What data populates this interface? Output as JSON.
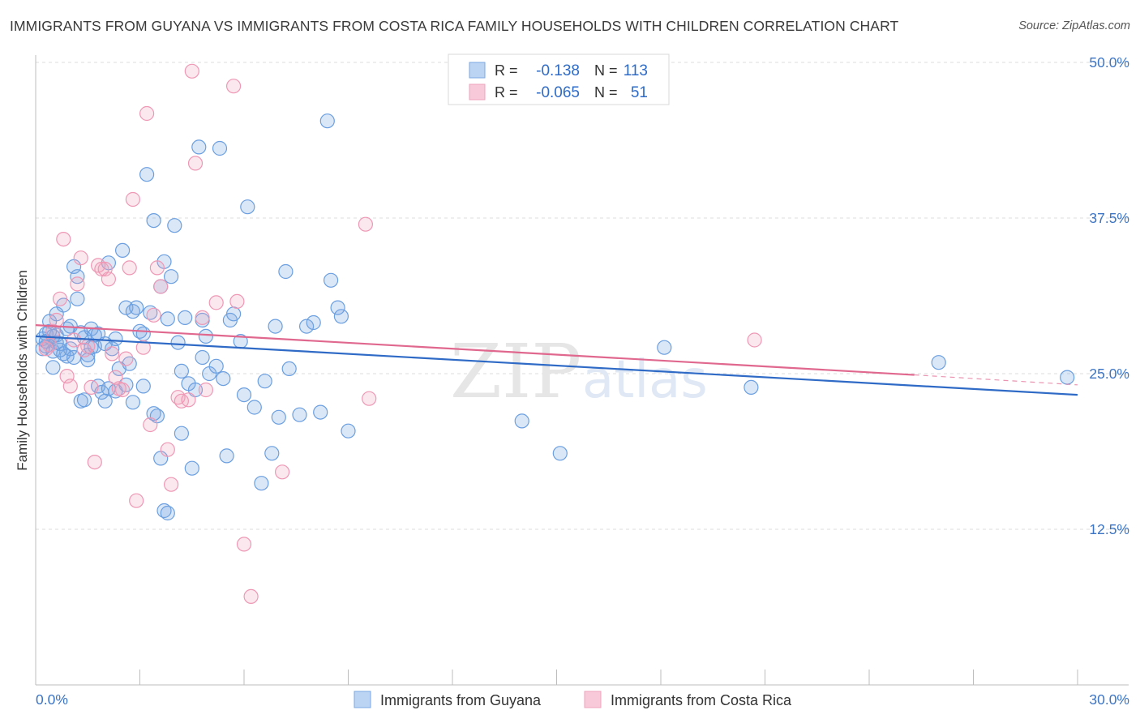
{
  "title": "IMMIGRANTS FROM GUYANA VS IMMIGRANTS FROM COSTA RICA FAMILY HOUSEHOLDS WITH CHILDREN CORRELATION CHART",
  "source": "Source: ZipAtlas.com",
  "watermark": {
    "zip": "ZIP",
    "atlas": "atlas"
  },
  "legend": {
    "r_label": "R =",
    "n_label": "N =",
    "series1": {
      "r": "-0.138",
      "n": "113"
    },
    "series2": {
      "r": "-0.065",
      "n": "51"
    }
  },
  "chart_data": {
    "type": "scatter",
    "title": "IMMIGRANTS FROM GUYANA VS IMMIGRANTS FROM COSTA RICA FAMILY HOUSEHOLDS WITH CHILDREN CORRELATION CHART",
    "xlabel": "",
    "ylabel": "Family Households with Children",
    "xlim": [
      0,
      30
    ],
    "ylim": [
      0,
      50
    ],
    "x_tick_labels": [
      "0.0%",
      "30.0%"
    ],
    "y_ticks": [
      12.5,
      25.0,
      37.5,
      50.0
    ],
    "y_tick_labels": [
      "12.5%",
      "25.0%",
      "37.5%",
      "50.0%"
    ],
    "grid": true,
    "legend_position": "top-center",
    "series": [
      {
        "name": "Immigrants from Guyana",
        "color": "#7ba9e3",
        "line_color": "#2f6bc6",
        "trend": {
          "x0": 0,
          "y0": 28.0,
          "x1": 30,
          "y1": 23.3
        },
        "points": [
          [
            0.2,
            27.8
          ],
          [
            0.3,
            28.2
          ],
          [
            0.3,
            27.2
          ],
          [
            0.4,
            29.2
          ],
          [
            0.5,
            26.8
          ],
          [
            0.6,
            28.1
          ],
          [
            0.7,
            27.4
          ],
          [
            0.8,
            30.5
          ],
          [
            0.9,
            26.4
          ],
          [
            1.0,
            28.8
          ],
          [
            1.1,
            33.6
          ],
          [
            1.2,
            32.8
          ],
          [
            1.3,
            28.3
          ],
          [
            1.4,
            27.9
          ],
          [
            1.5,
            26.1
          ],
          [
            1.6,
            28.6
          ],
          [
            1.7,
            27.2
          ],
          [
            1.8,
            24.0
          ],
          [
            1.9,
            23.5
          ],
          [
            2.0,
            22.8
          ],
          [
            2.1,
            23.8
          ],
          [
            2.2,
            27.0
          ],
          [
            2.3,
            27.8
          ],
          [
            2.4,
            25.4
          ],
          [
            2.5,
            34.9
          ],
          [
            2.6,
            30.3
          ],
          [
            2.7,
            25.8
          ],
          [
            2.8,
            22.7
          ],
          [
            2.9,
            30.3
          ],
          [
            3.0,
            28.4
          ],
          [
            3.1,
            28.2
          ],
          [
            3.2,
            41.0
          ],
          [
            3.3,
            29.9
          ],
          [
            3.4,
            37.3
          ],
          [
            3.5,
            21.6
          ],
          [
            3.6,
            32.0
          ],
          [
            3.7,
            34.0
          ],
          [
            3.8,
            29.4
          ],
          [
            3.9,
            32.8
          ],
          [
            4.0,
            36.9
          ],
          [
            4.1,
            27.5
          ],
          [
            4.2,
            25.2
          ],
          [
            4.3,
            29.5
          ],
          [
            4.4,
            24.2
          ],
          [
            4.5,
            17.4
          ],
          [
            4.6,
            23.7
          ],
          [
            4.7,
            43.2
          ],
          [
            4.8,
            26.3
          ],
          [
            4.9,
            28.0
          ],
          [
            5.0,
            25.0
          ],
          [
            5.2,
            25.6
          ],
          [
            5.3,
            43.1
          ],
          [
            5.5,
            18.4
          ],
          [
            5.6,
            29.3
          ],
          [
            5.7,
            29.8
          ],
          [
            5.9,
            27.6
          ],
          [
            6.0,
            23.3
          ],
          [
            6.1,
            38.4
          ],
          [
            6.3,
            22.3
          ],
          [
            6.5,
            16.2
          ],
          [
            6.6,
            24.4
          ],
          [
            6.8,
            18.6
          ],
          [
            7.0,
            21.5
          ],
          [
            7.2,
            33.2
          ],
          [
            7.3,
            25.4
          ],
          [
            7.6,
            21.7
          ],
          [
            7.8,
            28.8
          ],
          [
            8.0,
            29.1
          ],
          [
            8.2,
            21.9
          ],
          [
            8.4,
            45.3
          ],
          [
            8.5,
            32.5
          ],
          [
            8.7,
            30.3
          ],
          [
            8.8,
            29.6
          ],
          [
            9.0,
            20.4
          ],
          [
            3.6,
            18.2
          ],
          [
            3.7,
            14.0
          ],
          [
            3.8,
            13.8
          ],
          [
            4.2,
            20.2
          ],
          [
            2.3,
            23.6
          ],
          [
            1.5,
            26.5
          ],
          [
            0.5,
            25.5
          ],
          [
            0.6,
            29.8
          ],
          [
            1.0,
            27.0
          ],
          [
            1.3,
            22.8
          ],
          [
            0.8,
            26.6
          ],
          [
            0.2,
            27.0
          ],
          [
            0.4,
            28.4
          ],
          [
            1.7,
            28.1
          ],
          [
            1.8,
            28.2
          ],
          [
            2.0,
            27.4
          ],
          [
            0.7,
            26.9
          ],
          [
            0.9,
            28.6
          ],
          [
            1.4,
            22.9
          ],
          [
            2.6,
            24.1
          ],
          [
            3.1,
            24.0
          ],
          [
            4.8,
            29.3
          ],
          [
            5.4,
            24.6
          ],
          [
            6.9,
            28.8
          ],
          [
            0.3,
            27.6
          ],
          [
            0.6,
            27.5
          ],
          [
            1.2,
            31.0
          ],
          [
            2.1,
            33.9
          ],
          [
            2.8,
            30.0
          ],
          [
            3.4,
            21.8
          ],
          [
            14.0,
            21.2
          ],
          [
            15.1,
            18.6
          ],
          [
            18.1,
            27.1
          ],
          [
            20.6,
            23.9
          ],
          [
            26.0,
            25.9
          ],
          [
            29.7,
            24.7
          ],
          [
            0.5,
            28.0
          ],
          [
            1.1,
            26.3
          ],
          [
            1.6,
            27.1
          ]
        ]
      },
      {
        "name": "Immigrants from Costa Rica",
        "color": "#f1a3bd",
        "line_color": "#e0688f",
        "trend": {
          "x0": 0,
          "y0": 28.9,
          "x1": 25.3,
          "y1": 24.9
        },
        "trend_dashed_to": {
          "x": 30,
          "y": 24.1
        },
        "points": [
          [
            0.3,
            27.0
          ],
          [
            0.4,
            27.3
          ],
          [
            0.5,
            28.4
          ],
          [
            0.6,
            29.3
          ],
          [
            0.7,
            31.0
          ],
          [
            0.8,
            35.8
          ],
          [
            1.0,
            24.0
          ],
          [
            1.1,
            27.7
          ],
          [
            1.2,
            32.2
          ],
          [
            1.3,
            34.3
          ],
          [
            1.5,
            27.2
          ],
          [
            1.6,
            23.9
          ],
          [
            1.7,
            17.9
          ],
          [
            1.8,
            33.7
          ],
          [
            1.9,
            33.4
          ],
          [
            2.0,
            33.4
          ],
          [
            2.1,
            32.6
          ],
          [
            2.2,
            26.6
          ],
          [
            2.3,
            24.7
          ],
          [
            2.5,
            23.7
          ],
          [
            2.6,
            26.2
          ],
          [
            2.7,
            33.5
          ],
          [
            2.8,
            39.0
          ],
          [
            2.9,
            14.8
          ],
          [
            3.1,
            27.1
          ],
          [
            3.2,
            45.9
          ],
          [
            3.3,
            20.9
          ],
          [
            3.4,
            29.7
          ],
          [
            3.5,
            33.5
          ],
          [
            3.6,
            32.0
          ],
          [
            3.8,
            18.9
          ],
          [
            3.9,
            16.1
          ],
          [
            4.1,
            23.1
          ],
          [
            4.2,
            22.8
          ],
          [
            4.5,
            49.3
          ],
          [
            4.6,
            41.9
          ],
          [
            4.8,
            29.5
          ],
          [
            4.9,
            23.7
          ],
          [
            5.2,
            30.7
          ],
          [
            5.7,
            48.1
          ],
          [
            5.8,
            30.8
          ],
          [
            6.0,
            11.3
          ],
          [
            6.2,
            7.1
          ],
          [
            7.1,
            17.1
          ],
          [
            9.5,
            37.0
          ],
          [
            9.6,
            23.0
          ],
          [
            20.7,
            27.7
          ],
          [
            0.9,
            24.8
          ],
          [
            1.4,
            26.9
          ],
          [
            2.4,
            23.8
          ],
          [
            4.4,
            22.9
          ]
        ]
      }
    ]
  }
}
